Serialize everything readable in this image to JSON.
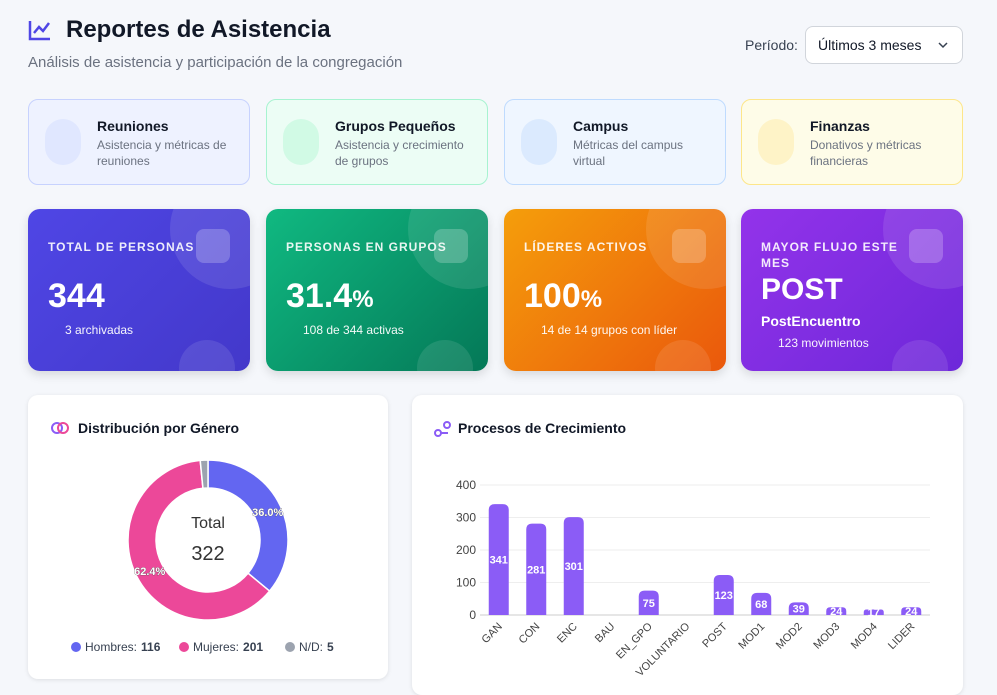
{
  "header": {
    "title": "Reportes de Asistencia",
    "subtitle": "Análisis de asistencia y participación de la congregación",
    "period_label": "Período:",
    "period_value": "Últimos 3 meses"
  },
  "nav_cards": [
    {
      "title": "Reuniones",
      "description": "Asistencia y métricas de reuniones"
    },
    {
      "title": "Grupos Pequeños",
      "description": "Asistencia y crecimiento de grupos"
    },
    {
      "title": "Campus",
      "description": "Métricas del campus virtual"
    },
    {
      "title": "Finanzas",
      "description": "Donativos y métricas financieras"
    }
  ],
  "stats": [
    {
      "label": "TOTAL DE PERSONAS",
      "value": 344,
      "note": "3 archivadas"
    },
    {
      "label": "PERSONAS EN GRUPOS",
      "value": 31.4,
      "unit": "%",
      "note": "108 de 344 activas"
    },
    {
      "label": "LÍDERES ACTIVOS",
      "value": 100,
      "unit": "%",
      "note": "14 de 14 grupos con líder"
    },
    {
      "label": "MAYOR FLUJO ESTE MES",
      "value": "POST",
      "detail": "PostEncuentro",
      "note": "123 movimientos"
    }
  ],
  "gender_chart": {
    "type": "donut",
    "title": "Distribución por Género",
    "center_label": "Total",
    "total": 322,
    "categories": [
      "Hombres:",
      "Mujeres:",
      "N/D:"
    ],
    "values": [
      116,
      201,
      5
    ],
    "colors": [
      "#6366f1",
      "#ec4899",
      "#9ca3af"
    ],
    "slice_labels": [
      {
        "value": 36.0,
        "label": "36.0%"
      },
      {
        "value": 62.4,
        "label": "62.4%"
      }
    ]
  },
  "growth_chart": {
    "type": "bar",
    "title": "Procesos de Crecimiento",
    "categories": [
      "GAN",
      "CON",
      "ENC",
      "BAU",
      "EN_GPO",
      "VOLUNTARIO",
      "POST",
      "MOD1",
      "MOD2",
      "MOD3",
      "MOD4",
      "LIDER"
    ],
    "values": [
      341,
      281,
      301,
      0,
      75,
      0,
      123,
      68,
      39,
      24,
      17,
      24
    ],
    "color": "#8b5cf6",
    "ylim": [
      0,
      400
    ],
    "yticks": [
      0,
      100,
      200,
      300,
      400
    ],
    "grid": true
  }
}
